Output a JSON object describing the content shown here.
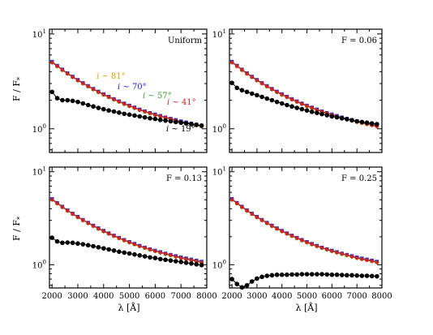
{
  "figure": {
    "ylabel_left": "F / F",
    "ylabel_sub": "*",
    "xlabel": "λ [Å]"
  },
  "chart_data": [
    {
      "type": "scatter",
      "title": "Uniform",
      "xlim": [
        1900,
        8000
      ],
      "ylim_log10": [
        -0.25,
        1.05
      ],
      "yscale": "log",
      "xticks": [
        2000,
        3000,
        4000,
        5000,
        6000,
        7000,
        8000
      ],
      "xtick_labels": [],
      "ytick_labels": [
        "10",
        "10"
      ],
      "ytick_exponents": [
        "1",
        "0"
      ],
      "grid": false,
      "annotations": [
        {
          "text": "i ~ 81°",
          "color": "#e6a000"
        },
        {
          "text": "i ~ 70°",
          "color": "#1f1fcc"
        },
        {
          "text": "i ~ 57°",
          "color": "#2e9e2e"
        },
        {
          "text": "i ~ 41°",
          "color": "#d62020"
        },
        {
          "text": "i ~ 19°",
          "color": "#000000"
        }
      ],
      "x": [
        2000,
        2200,
        2400,
        2600,
        2800,
        3000,
        3200,
        3400,
        3600,
        3800,
        4000,
        4200,
        4400,
        4600,
        4800,
        5000,
        5200,
        5400,
        5600,
        5800,
        6000,
        6200,
        6400,
        6600,
        6800,
        7000,
        7200,
        7400,
        7600,
        7800
      ],
      "series": [
        {
          "name": "i ~ 81°",
          "color": "#e6a000",
          "marker": "circle",
          "values": [
            5.0,
            4.55,
            4.15,
            3.8,
            3.5,
            3.23,
            3.0,
            2.79,
            2.6,
            2.43,
            2.28,
            2.15,
            2.03,
            1.92,
            1.82,
            1.73,
            1.65,
            1.58,
            1.51,
            1.45,
            1.4,
            1.35,
            1.3,
            1.26,
            1.22,
            1.18,
            1.15,
            1.12,
            1.09,
            1.06
          ]
        },
        {
          "name": "i ~ 70°",
          "color": "#1f1fcc",
          "marker": "square",
          "values": [
            5.1,
            4.63,
            4.22,
            3.86,
            3.55,
            3.28,
            3.04,
            2.83,
            2.64,
            2.47,
            2.32,
            2.18,
            2.06,
            1.95,
            1.85,
            1.76,
            1.68,
            1.6,
            1.53,
            1.47,
            1.42,
            1.37,
            1.32,
            1.28,
            1.24,
            1.2,
            1.17,
            1.14,
            1.11,
            1.08
          ]
        },
        {
          "name": "i ~ 57°",
          "color": "#2e9e2e",
          "marker": "triangle",
          "values": [
            5.05,
            4.6,
            4.19,
            3.83,
            3.52,
            3.25,
            3.02,
            2.81,
            2.62,
            2.45,
            2.3,
            2.17,
            2.05,
            1.94,
            1.84,
            1.75,
            1.67,
            1.59,
            1.52,
            1.46,
            1.41,
            1.36,
            1.31,
            1.27,
            1.23,
            1.19,
            1.16,
            1.13,
            1.1,
            1.07
          ]
        },
        {
          "name": "i ~ 41°",
          "color": "#d62020",
          "marker": "diamond",
          "values": [
            5.0,
            4.58,
            4.17,
            3.81,
            3.51,
            3.24,
            3.01,
            2.8,
            2.61,
            2.44,
            2.29,
            2.16,
            2.04,
            1.93,
            1.83,
            1.74,
            1.66,
            1.58,
            1.52,
            1.46,
            1.4,
            1.35,
            1.31,
            1.27,
            1.22,
            1.18,
            1.15,
            1.12,
            1.09,
            1.06
          ]
        },
        {
          "name": "i ~ 19°",
          "color": "#000000",
          "marker": "circle",
          "values": [
            2.45,
            2.1,
            2.0,
            2.0,
            1.97,
            1.92,
            1.85,
            1.78,
            1.72,
            1.66,
            1.61,
            1.56,
            1.52,
            1.48,
            1.44,
            1.41,
            1.38,
            1.35,
            1.32,
            1.29,
            1.27,
            1.24,
            1.22,
            1.2,
            1.18,
            1.16,
            1.14,
            1.12,
            1.1,
            1.08
          ]
        }
      ]
    },
    {
      "type": "scatter",
      "title": "F = 0.06",
      "xlim": [
        1900,
        8000
      ],
      "ylim_log10": [
        -0.25,
        1.05
      ],
      "yscale": "log",
      "xticks": [
        2000,
        3000,
        4000,
        5000,
        6000,
        7000,
        8000
      ],
      "xtick_labels": [],
      "ytick_labels": [
        "10",
        "10"
      ],
      "ytick_exponents": [
        "1",
        "0"
      ],
      "grid": false,
      "annotations": [],
      "x": [
        2000,
        2200,
        2400,
        2600,
        2800,
        3000,
        3200,
        3400,
        3600,
        3800,
        4000,
        4200,
        4400,
        4600,
        4800,
        5000,
        5200,
        5400,
        5600,
        5800,
        6000,
        6200,
        6400,
        6600,
        6800,
        7000,
        7200,
        7400,
        7600,
        7800
      ],
      "series": [
        {
          "name": "i ~ 81°",
          "color": "#e6a000",
          "marker": "circle",
          "values": [
            5.0,
            4.55,
            4.15,
            3.8,
            3.5,
            3.23,
            3.0,
            2.79,
            2.6,
            2.43,
            2.28,
            2.15,
            2.03,
            1.92,
            1.82,
            1.73,
            1.65,
            1.58,
            1.51,
            1.45,
            1.4,
            1.35,
            1.3,
            1.26,
            1.22,
            1.18,
            1.15,
            1.12,
            1.09,
            1.06
          ]
        },
        {
          "name": "i ~ 70°",
          "color": "#1f1fcc",
          "marker": "square",
          "values": [
            5.1,
            4.63,
            4.22,
            3.86,
            3.55,
            3.28,
            3.04,
            2.83,
            2.64,
            2.47,
            2.32,
            2.18,
            2.06,
            1.95,
            1.85,
            1.76,
            1.68,
            1.6,
            1.53,
            1.47,
            1.42,
            1.37,
            1.32,
            1.28,
            1.24,
            1.2,
            1.17,
            1.14,
            1.11,
            1.08
          ]
        },
        {
          "name": "i ~ 57°",
          "color": "#2e9e2e",
          "marker": "triangle",
          "values": [
            5.05,
            4.6,
            4.19,
            3.83,
            3.52,
            3.25,
            3.02,
            2.81,
            2.62,
            2.45,
            2.3,
            2.17,
            2.05,
            1.94,
            1.84,
            1.75,
            1.67,
            1.59,
            1.52,
            1.46,
            1.41,
            1.36,
            1.31,
            1.27,
            1.23,
            1.19,
            1.16,
            1.13,
            1.1,
            1.07
          ]
        },
        {
          "name": "i ~ 41°",
          "color": "#d62020",
          "marker": "diamond",
          "values": [
            5.0,
            4.58,
            4.17,
            3.81,
            3.51,
            3.24,
            3.01,
            2.8,
            2.61,
            2.44,
            2.29,
            2.16,
            2.04,
            1.93,
            1.83,
            1.74,
            1.66,
            1.58,
            1.52,
            1.46,
            1.4,
            1.35,
            1.31,
            1.27,
            1.22,
            1.18,
            1.15,
            1.12,
            1.09,
            1.06
          ]
        },
        {
          "name": "i ~ 19°",
          "color": "#000000",
          "marker": "circle",
          "values": [
            3.05,
            2.7,
            2.55,
            2.45,
            2.35,
            2.26,
            2.17,
            2.08,
            2.0,
            1.92,
            1.85,
            1.78,
            1.72,
            1.66,
            1.61,
            1.56,
            1.51,
            1.47,
            1.43,
            1.39,
            1.35,
            1.32,
            1.29,
            1.26,
            1.23,
            1.2,
            1.18,
            1.16,
            1.14,
            1.12
          ]
        }
      ]
    },
    {
      "type": "scatter",
      "title": "F = 0.13",
      "xlim": [
        1900,
        8000
      ],
      "ylim_log10": [
        -0.25,
        1.05
      ],
      "yscale": "log",
      "xticks": [
        2000,
        3000,
        4000,
        5000,
        6000,
        7000,
        8000
      ],
      "xtick_labels": [
        "2000",
        "3000",
        "4000",
        "5000",
        "6000",
        "7000",
        "8000"
      ],
      "ytick_labels": [
        "10",
        "10"
      ],
      "ytick_exponents": [
        "1",
        "0"
      ],
      "grid": false,
      "annotations": [],
      "x": [
        2000,
        2200,
        2400,
        2600,
        2800,
        3000,
        3200,
        3400,
        3600,
        3800,
        4000,
        4200,
        4400,
        4600,
        4800,
        5000,
        5200,
        5400,
        5600,
        5800,
        6000,
        6200,
        6400,
        6600,
        6800,
        7000,
        7200,
        7400,
        7600,
        7800
      ],
      "series": [
        {
          "name": "i ~ 81°",
          "color": "#e6a000",
          "marker": "circle",
          "values": [
            5.0,
            4.55,
            4.15,
            3.8,
            3.5,
            3.23,
            3.0,
            2.79,
            2.6,
            2.43,
            2.28,
            2.15,
            2.03,
            1.92,
            1.82,
            1.73,
            1.65,
            1.58,
            1.51,
            1.45,
            1.4,
            1.35,
            1.3,
            1.26,
            1.22,
            1.18,
            1.15,
            1.12,
            1.09,
            1.06
          ]
        },
        {
          "name": "i ~ 70°",
          "color": "#1f1fcc",
          "marker": "square",
          "values": [
            5.1,
            4.63,
            4.22,
            3.86,
            3.55,
            3.28,
            3.04,
            2.83,
            2.64,
            2.47,
            2.32,
            2.18,
            2.06,
            1.95,
            1.85,
            1.76,
            1.68,
            1.6,
            1.53,
            1.47,
            1.42,
            1.37,
            1.32,
            1.28,
            1.24,
            1.2,
            1.17,
            1.14,
            1.11,
            1.08
          ]
        },
        {
          "name": "i ~ 57°",
          "color": "#2e9e2e",
          "marker": "triangle",
          "values": [
            5.05,
            4.6,
            4.19,
            3.83,
            3.52,
            3.25,
            3.02,
            2.81,
            2.62,
            2.45,
            2.3,
            2.17,
            2.05,
            1.94,
            1.84,
            1.75,
            1.67,
            1.59,
            1.52,
            1.46,
            1.41,
            1.36,
            1.31,
            1.27,
            1.23,
            1.19,
            1.16,
            1.13,
            1.1,
            1.07
          ]
        },
        {
          "name": "i ~ 41°",
          "color": "#d62020",
          "marker": "diamond",
          "values": [
            5.0,
            4.58,
            4.17,
            3.81,
            3.51,
            3.24,
            3.01,
            2.8,
            2.61,
            2.44,
            2.29,
            2.16,
            2.04,
            1.93,
            1.83,
            1.74,
            1.66,
            1.58,
            1.52,
            1.46,
            1.4,
            1.35,
            1.31,
            1.27,
            1.22,
            1.18,
            1.15,
            1.12,
            1.09,
            1.06
          ]
        },
        {
          "name": "i ~ 19°",
          "color": "#000000",
          "marker": "circle",
          "values": [
            1.95,
            1.78,
            1.72,
            1.73,
            1.72,
            1.69,
            1.66,
            1.62,
            1.58,
            1.54,
            1.5,
            1.46,
            1.42,
            1.38,
            1.35,
            1.32,
            1.29,
            1.26,
            1.23,
            1.2,
            1.18,
            1.15,
            1.13,
            1.11,
            1.09,
            1.07,
            1.05,
            1.03,
            1.01,
            0.99
          ]
        }
      ]
    },
    {
      "type": "scatter",
      "title": "F = 0.25",
      "xlim": [
        1900,
        8000
      ],
      "ylim_log10": [
        -0.25,
        1.05
      ],
      "yscale": "log",
      "xticks": [
        2000,
        3000,
        4000,
        5000,
        6000,
        7000,
        8000
      ],
      "xtick_labels": [
        "2000",
        "3000",
        "4000",
        "5000",
        "6000",
        "7000",
        "8000"
      ],
      "ytick_labels": [
        "10",
        "10"
      ],
      "ytick_exponents": [
        "1",
        "0"
      ],
      "grid": false,
      "annotations": [],
      "x": [
        2000,
        2200,
        2400,
        2600,
        2800,
        3000,
        3200,
        3400,
        3600,
        3800,
        4000,
        4200,
        4400,
        4600,
        4800,
        5000,
        5200,
        5400,
        5600,
        5800,
        6000,
        6200,
        6400,
        6600,
        6800,
        7000,
        7200,
        7400,
        7600,
        7800
      ],
      "series": [
        {
          "name": "i ~ 81°",
          "color": "#e6a000",
          "marker": "circle",
          "values": [
            5.0,
            4.55,
            4.15,
            3.8,
            3.5,
            3.23,
            3.0,
            2.79,
            2.6,
            2.43,
            2.28,
            2.15,
            2.03,
            1.92,
            1.82,
            1.73,
            1.65,
            1.58,
            1.51,
            1.45,
            1.4,
            1.35,
            1.3,
            1.26,
            1.22,
            1.18,
            1.15,
            1.12,
            1.09,
            1.06
          ]
        },
        {
          "name": "i ~ 70°",
          "color": "#1f1fcc",
          "marker": "square",
          "values": [
            5.1,
            4.63,
            4.22,
            3.86,
            3.55,
            3.28,
            3.04,
            2.83,
            2.64,
            2.47,
            2.32,
            2.18,
            2.06,
            1.95,
            1.85,
            1.76,
            1.68,
            1.6,
            1.53,
            1.47,
            1.42,
            1.37,
            1.32,
            1.28,
            1.24,
            1.2,
            1.17,
            1.14,
            1.11,
            1.08
          ]
        },
        {
          "name": "i ~ 57°",
          "color": "#2e9e2e",
          "marker": "triangle",
          "values": [
            5.05,
            4.6,
            4.19,
            3.83,
            3.52,
            3.25,
            3.02,
            2.81,
            2.62,
            2.45,
            2.3,
            2.17,
            2.05,
            1.94,
            1.84,
            1.75,
            1.67,
            1.59,
            1.52,
            1.46,
            1.41,
            1.36,
            1.31,
            1.27,
            1.23,
            1.19,
            1.16,
            1.13,
            1.1,
            1.07
          ]
        },
        {
          "name": "i ~ 41°",
          "color": "#d62020",
          "marker": "diamond",
          "values": [
            5.0,
            4.58,
            4.17,
            3.81,
            3.51,
            3.24,
            3.01,
            2.8,
            2.61,
            2.44,
            2.29,
            2.16,
            2.04,
            1.93,
            1.83,
            1.74,
            1.66,
            1.58,
            1.52,
            1.46,
            1.4,
            1.35,
            1.31,
            1.27,
            1.22,
            1.18,
            1.15,
            1.12,
            1.09,
            1.06
          ]
        },
        {
          "name": "i ~ 19°",
          "color": "#000000",
          "marker": "circle",
          "values": [
            0.7,
            0.62,
            0.57,
            0.6,
            0.66,
            0.71,
            0.74,
            0.76,
            0.77,
            0.78,
            0.78,
            0.78,
            0.785,
            0.785,
            0.79,
            0.79,
            0.79,
            0.79,
            0.79,
            0.785,
            0.78,
            0.78,
            0.775,
            0.77,
            0.77,
            0.765,
            0.76,
            0.76,
            0.755,
            0.75
          ]
        }
      ]
    }
  ]
}
